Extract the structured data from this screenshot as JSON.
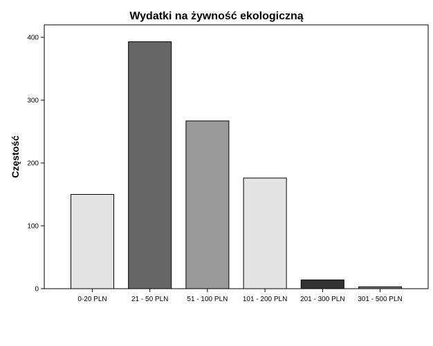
{
  "chart_data": {
    "type": "bar",
    "title": "Wydatki na żywność ekologiczną",
    "xlabel": "",
    "ylabel": "Częstość",
    "categories": [
      "0-20 PLN",
      "21 - 50 PLN",
      "51 - 100 PLN",
      "101 - 200 PLN",
      "201 - 300 PLN",
      "301 - 500 PLN"
    ],
    "values": [
      150,
      393,
      267,
      176,
      14,
      3
    ],
    "colors": [
      "#e4e4e4",
      "#666666",
      "#9a9a9a",
      "#e4e4e4",
      "#333333",
      "#7a7a7a"
    ],
    "ylim": [
      0,
      420
    ],
    "yticks": [
      0,
      100,
      200,
      300,
      400
    ],
    "grid": false
  }
}
